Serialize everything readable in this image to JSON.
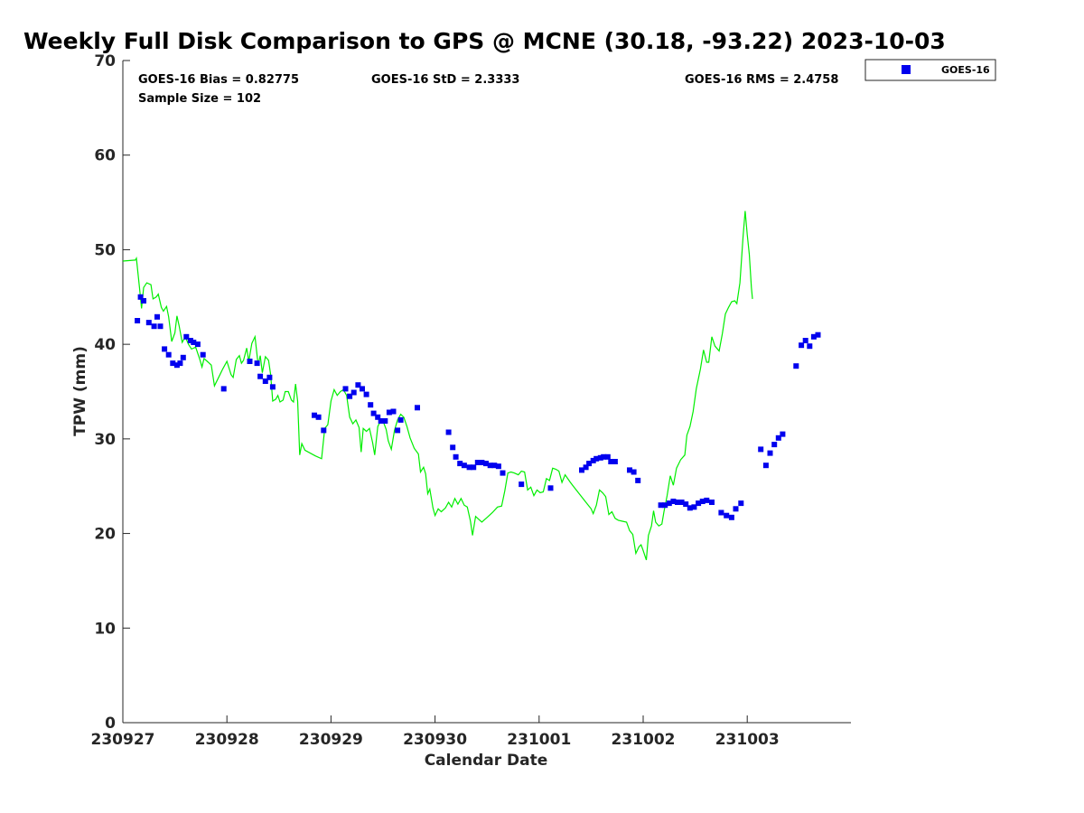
{
  "chart_data": {
    "type": "scatter",
    "title": "Weekly Full Disk Comparison to GPS @ MCNE (30.18, -93.22) 2023-10-03",
    "xlabel": "Calendar Date",
    "ylabel": "TPW (mm)",
    "xlim": [
      0,
      7
    ],
    "ylim": [
      0,
      70
    ],
    "x_ticks": [
      0,
      1,
      2,
      3,
      4,
      5,
      6
    ],
    "x_tick_labels": [
      "230927",
      "230928",
      "230929",
      "230930",
      "231001",
      "231002",
      "231003"
    ],
    "y_ticks": [
      0,
      10,
      20,
      30,
      40,
      50,
      60,
      70
    ],
    "y_tick_labels": [
      "0",
      "10",
      "20",
      "30",
      "40",
      "50",
      "60",
      "70"
    ],
    "grid": false,
    "legend": {
      "position": "top-right",
      "entries": [
        "GOES-16"
      ]
    },
    "stats": {
      "bias": "GOES-16 Bias = 0.82775",
      "std": "GOES-16 StD = 2.3333",
      "rms": "GOES-16 RMS = 2.4758",
      "sample": "Sample Size = 102"
    },
    "series": [
      {
        "name": "GPS",
        "kind": "line",
        "color": "#00ee00",
        "points": [
          [
            0,
            48.8
          ],
          [
            0.12,
            48.9
          ],
          [
            0.13,
            49.1
          ],
          [
            0.16,
            46
          ],
          [
            0.18,
            43.8
          ],
          [
            0.2,
            46
          ],
          [
            0.23,
            46.5
          ],
          [
            0.27,
            46.3
          ],
          [
            0.29,
            44.8
          ],
          [
            0.32,
            45
          ],
          [
            0.34,
            45.3
          ],
          [
            0.37,
            43.9
          ],
          [
            0.39,
            43.5
          ],
          [
            0.42,
            44
          ],
          [
            0.44,
            42.9
          ],
          [
            0.47,
            40.3
          ],
          [
            0.5,
            41.2
          ],
          [
            0.52,
            43
          ],
          [
            0.54,
            42
          ],
          [
            0.57,
            40.2
          ],
          [
            0.6,
            40.8
          ],
          [
            0.63,
            40
          ],
          [
            0.66,
            39.5
          ],
          [
            0.7,
            39.7
          ],
          [
            0.74,
            38.4
          ],
          [
            0.76,
            37.6
          ],
          [
            0.78,
            38.5
          ],
          [
            0.82,
            38.1
          ],
          [
            0.85,
            37.8
          ],
          [
            0.88,
            35.6
          ],
          [
            0.92,
            36.5
          ],
          [
            0.96,
            37.4
          ],
          [
            1.0,
            38.2
          ],
          [
            1.04,
            36.8
          ],
          [
            1.06,
            36.5
          ],
          [
            1.09,
            38.4
          ],
          [
            1.12,
            38.8
          ],
          [
            1.14,
            38
          ],
          [
            1.16,
            38.3
          ],
          [
            1.19,
            39.6
          ],
          [
            1.21,
            38.2
          ],
          [
            1.24,
            40.1
          ],
          [
            1.27,
            40.8
          ],
          [
            1.3,
            37.8
          ],
          [
            1.32,
            38.8
          ],
          [
            1.34,
            37
          ],
          [
            1.37,
            38.7
          ],
          [
            1.4,
            38.3
          ],
          [
            1.42,
            36.8
          ],
          [
            1.44,
            34
          ],
          [
            1.47,
            34.2
          ],
          [
            1.49,
            34.6
          ],
          [
            1.51,
            33.9
          ],
          [
            1.54,
            34.1
          ],
          [
            1.56,
            35
          ],
          [
            1.59,
            35
          ],
          [
            1.62,
            34.1
          ],
          [
            1.64,
            33.9
          ],
          [
            1.66,
            35.8
          ],
          [
            1.68,
            34
          ],
          [
            1.7,
            28.3
          ],
          [
            1.72,
            29.5
          ],
          [
            1.75,
            28.8
          ],
          [
            1.85,
            28.2
          ],
          [
            1.91,
            27.9
          ],
          [
            1.94,
            31.1
          ],
          [
            1.97,
            31.5
          ],
          [
            2.0,
            34
          ],
          [
            2.03,
            35.2
          ],
          [
            2.06,
            34.6
          ],
          [
            2.09,
            35
          ],
          [
            2.12,
            35.2
          ],
          [
            2.15,
            34.6
          ],
          [
            2.18,
            32.3
          ],
          [
            2.21,
            31.6
          ],
          [
            2.24,
            32
          ],
          [
            2.27,
            31.2
          ],
          [
            2.29,
            28.6
          ],
          [
            2.31,
            31.1
          ],
          [
            2.34,
            30.8
          ],
          [
            2.37,
            31.1
          ],
          [
            2.4,
            29.6
          ],
          [
            2.42,
            28.3
          ],
          [
            2.45,
            31.3
          ],
          [
            2.48,
            32
          ],
          [
            2.5,
            31.9
          ],
          [
            2.53,
            31
          ],
          [
            2.55,
            29.8
          ],
          [
            2.58,
            28.9
          ],
          [
            2.61,
            30.9
          ],
          [
            2.64,
            32
          ],
          [
            2.67,
            32.6
          ],
          [
            2.7,
            32.3
          ],
          [
            2.73,
            31.3
          ],
          [
            2.76,
            30.1
          ],
          [
            2.8,
            29
          ],
          [
            2.84,
            28.4
          ],
          [
            2.86,
            26.5
          ],
          [
            2.89,
            27
          ],
          [
            2.91,
            26.3
          ],
          [
            2.93,
            24.2
          ],
          [
            2.95,
            24.7
          ],
          [
            2.98,
            22.7
          ],
          [
            3.0,
            21.9
          ],
          [
            3.03,
            22.6
          ],
          [
            3.06,
            22.3
          ],
          [
            3.1,
            22.7
          ],
          [
            3.13,
            23.3
          ],
          [
            3.16,
            22.8
          ],
          [
            3.19,
            23.7
          ],
          [
            3.22,
            23.1
          ],
          [
            3.25,
            23.7
          ],
          [
            3.28,
            23
          ],
          [
            3.31,
            22.8
          ],
          [
            3.34,
            21.3
          ],
          [
            3.36,
            19.8
          ],
          [
            3.39,
            21.8
          ],
          [
            3.42,
            21.5
          ],
          [
            3.45,
            21.2
          ],
          [
            3.5,
            21.7
          ],
          [
            3.55,
            22.2
          ],
          [
            3.6,
            22.8
          ],
          [
            3.64,
            22.9
          ],
          [
            3.67,
            24.5
          ],
          [
            3.7,
            26.4
          ],
          [
            3.73,
            26.5
          ],
          [
            3.76,
            26.4
          ],
          [
            3.8,
            26.2
          ],
          [
            3.83,
            26.6
          ],
          [
            3.86,
            26.5
          ],
          [
            3.89,
            24.6
          ],
          [
            3.92,
            24.9
          ],
          [
            3.95,
            24
          ],
          [
            3.98,
            24.6
          ],
          [
            4.01,
            24.3
          ],
          [
            4.04,
            24.4
          ],
          [
            4.07,
            25.8
          ],
          [
            4.1,
            25.6
          ],
          [
            4.13,
            26.9
          ],
          [
            4.16,
            26.8
          ],
          [
            4.19,
            26.6
          ],
          [
            4.22,
            25.4
          ],
          [
            4.25,
            26.2
          ],
          [
            4.3,
            25.4
          ],
          [
            4.35,
            24.7
          ],
          [
            4.4,
            24
          ],
          [
            4.45,
            23.3
          ],
          [
            4.5,
            22.6
          ],
          [
            4.52,
            22.1
          ],
          [
            4.55,
            23
          ],
          [
            4.58,
            24.6
          ],
          [
            4.61,
            24.3
          ],
          [
            4.64,
            23.9
          ],
          [
            4.67,
            22
          ],
          [
            4.7,
            22.3
          ],
          [
            4.73,
            21.6
          ],
          [
            4.76,
            21.4
          ],
          [
            4.8,
            21.3
          ],
          [
            4.84,
            21.2
          ],
          [
            4.87,
            20.3
          ],
          [
            4.9,
            19.9
          ],
          [
            4.93,
            17.9
          ],
          [
            4.96,
            18.6
          ],
          [
            4.98,
            18.8
          ],
          [
            5.0,
            18.2
          ],
          [
            5.03,
            17.2
          ],
          [
            5.05,
            19.8
          ],
          [
            5.08,
            20.8
          ],
          [
            5.1,
            22.4
          ],
          [
            5.12,
            21.2
          ],
          [
            5.15,
            20.8
          ],
          [
            5.18,
            21
          ],
          [
            5.2,
            22.3
          ],
          [
            5.23,
            24
          ],
          [
            5.26,
            26.1
          ],
          [
            5.29,
            25.1
          ],
          [
            5.32,
            26.9
          ],
          [
            5.36,
            27.8
          ],
          [
            5.4,
            28.3
          ],
          [
            5.42,
            30.4
          ],
          [
            5.45,
            31.3
          ],
          [
            5.48,
            32.9
          ],
          [
            5.51,
            35.3
          ],
          [
            5.55,
            37.4
          ],
          [
            5.58,
            39.4
          ],
          [
            5.61,
            38.1
          ],
          [
            5.63,
            38.1
          ],
          [
            5.66,
            40.8
          ],
          [
            5.69,
            39.8
          ],
          [
            5.73,
            39.3
          ],
          [
            5.76,
            41.1
          ],
          [
            5.79,
            43.2
          ],
          [
            5.82,
            43.9
          ],
          [
            5.85,
            44.5
          ],
          [
            5.88,
            44.6
          ],
          [
            5.9,
            44.3
          ],
          [
            5.93,
            46.5
          ],
          [
            5.96,
            51.4
          ],
          [
            5.98,
            54.1
          ],
          [
            6.0,
            51.6
          ],
          [
            6.02,
            49.5
          ],
          [
            6.04,
            46
          ],
          [
            6.05,
            44.8
          ]
        ]
      },
      {
        "name": "GOES-16",
        "kind": "markers",
        "color": "#0000ee",
        "points": [
          [
            0.14,
            42.5
          ],
          [
            0.17,
            45
          ],
          [
            0.2,
            44.6
          ],
          [
            0.25,
            42.3
          ],
          [
            0.3,
            41.9
          ],
          [
            0.33,
            42.9
          ],
          [
            0.36,
            41.9
          ],
          [
            0.4,
            39.5
          ],
          [
            0.44,
            38.9
          ],
          [
            0.48,
            38
          ],
          [
            0.52,
            37.8
          ],
          [
            0.55,
            38
          ],
          [
            0.58,
            38.6
          ],
          [
            0.61,
            40.8
          ],
          [
            0.65,
            40.4
          ],
          [
            0.68,
            40.2
          ],
          [
            0.72,
            40
          ],
          [
            0.77,
            38.9
          ],
          [
            0.97,
            35.3
          ],
          [
            1.22,
            38.2
          ],
          [
            1.29,
            38
          ],
          [
            1.32,
            36.6
          ],
          [
            1.37,
            36.1
          ],
          [
            1.41,
            36.5
          ],
          [
            1.44,
            35.5
          ],
          [
            1.84,
            32.5
          ],
          [
            1.88,
            32.3
          ],
          [
            1.93,
            30.9
          ],
          [
            2.14,
            35.3
          ],
          [
            2.18,
            34.5
          ],
          [
            2.22,
            34.9
          ],
          [
            2.26,
            35.7
          ],
          [
            2.3,
            35.3
          ],
          [
            2.34,
            34.7
          ],
          [
            2.38,
            33.6
          ],
          [
            2.41,
            32.7
          ],
          [
            2.45,
            32.3
          ],
          [
            2.48,
            31.9
          ],
          [
            2.52,
            31.9
          ],
          [
            2.56,
            32.8
          ],
          [
            2.6,
            32.9
          ],
          [
            2.64,
            30.9
          ],
          [
            2.67,
            32
          ],
          [
            2.83,
            33.3
          ],
          [
            3.13,
            30.7
          ],
          [
            3.17,
            29.1
          ],
          [
            3.2,
            28.1
          ],
          [
            3.24,
            27.4
          ],
          [
            3.28,
            27.2
          ],
          [
            3.33,
            27
          ],
          [
            3.37,
            27
          ],
          [
            3.41,
            27.5
          ],
          [
            3.45,
            27.5
          ],
          [
            3.49,
            27.4
          ],
          [
            3.53,
            27.2
          ],
          [
            3.57,
            27.2
          ],
          [
            3.61,
            27.1
          ],
          [
            3.65,
            26.4
          ],
          [
            3.83,
            25.2
          ],
          [
            4.11,
            24.8
          ],
          [
            4.41,
            26.7
          ],
          [
            4.45,
            27
          ],
          [
            4.48,
            27.4
          ],
          [
            4.52,
            27.7
          ],
          [
            4.55,
            27.9
          ],
          [
            4.59,
            28
          ],
          [
            4.62,
            28.1
          ],
          [
            4.66,
            28.1
          ],
          [
            4.69,
            27.6
          ],
          [
            4.73,
            27.6
          ],
          [
            4.87,
            26.7
          ],
          [
            4.91,
            26.5
          ],
          [
            4.95,
            25.6
          ],
          [
            5.17,
            23
          ],
          [
            5.21,
            23
          ],
          [
            5.25,
            23.2
          ],
          [
            5.29,
            23.4
          ],
          [
            5.33,
            23.3
          ],
          [
            5.37,
            23.3
          ],
          [
            5.41,
            23.1
          ],
          [
            5.45,
            22.7
          ],
          [
            5.49,
            22.8
          ],
          [
            5.53,
            23.2
          ],
          [
            5.57,
            23.4
          ],
          [
            5.61,
            23.5
          ],
          [
            5.66,
            23.3
          ],
          [
            5.75,
            22.2
          ],
          [
            5.8,
            21.9
          ],
          [
            5.85,
            21.7
          ],
          [
            5.89,
            22.6
          ],
          [
            5.94,
            23.2
          ],
          [
            6.13,
            28.9
          ],
          [
            6.18,
            27.2
          ],
          [
            6.22,
            28.5
          ],
          [
            6.26,
            29.4
          ],
          [
            6.3,
            30.1
          ],
          [
            6.34,
            30.5
          ],
          [
            6.47,
            37.7
          ],
          [
            6.52,
            39.9
          ],
          [
            6.56,
            40.4
          ],
          [
            6.6,
            39.8
          ],
          [
            6.64,
            40.8
          ],
          [
            6.68,
            41
          ]
        ]
      }
    ]
  }
}
